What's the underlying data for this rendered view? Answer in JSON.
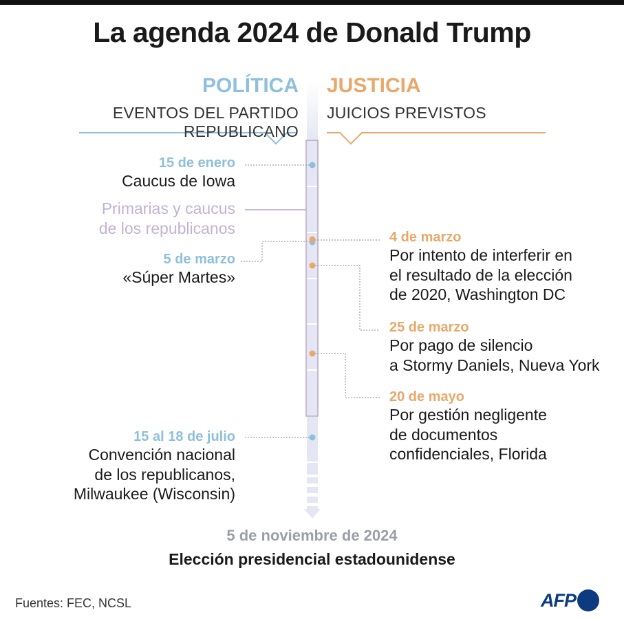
{
  "title": "La agenda 2024 de Donald Trump",
  "colors": {
    "politica": "#8ebfdc",
    "justicia": "#e9a86a",
    "primarias": "#c3b2d4",
    "timeline": "#e4e7f3"
  },
  "politica": {
    "heading": "POLÍTICA",
    "subheading": "EVENTOS DEL PARTIDO REPUBLICANO",
    "events": [
      {
        "date": "15 de enero",
        "text": [
          "Caucus de Iowa"
        ]
      },
      {
        "date": "",
        "text": [
          "Primarias y caucus",
          "de los republicanos"
        ]
      },
      {
        "date": "5 de marzo",
        "text": [
          "«Súper Martes»"
        ]
      },
      {
        "date": "15 al 18 de julio",
        "text": [
          "Convención nacional",
          "de los republicanos,",
          "Milwaukee (Wisconsin)"
        ]
      }
    ]
  },
  "justicia": {
    "heading": "JUSTICIA",
    "subheading": "JUICIOS PREVISTOS",
    "events": [
      {
        "date": "4 de marzo",
        "text": [
          "Por intento de interferir en",
          "el resultado de la elección",
          "de 2020, Washington DC"
        ]
      },
      {
        "date": "25 de marzo",
        "text": [
          "Por pago de silencio",
          "a Stormy Daniels, Nueva York"
        ]
      },
      {
        "date": "20 de mayo",
        "text": [
          "Por gestión negligente",
          "de documentos",
          "confidenciales, Florida"
        ]
      }
    ]
  },
  "final": {
    "date": "5 de noviembre de 2024",
    "label": "Elección presidencial estadounidense"
  },
  "footer": {
    "sources": "Fuentes: FEC, NCSL",
    "logo": "AFP"
  }
}
